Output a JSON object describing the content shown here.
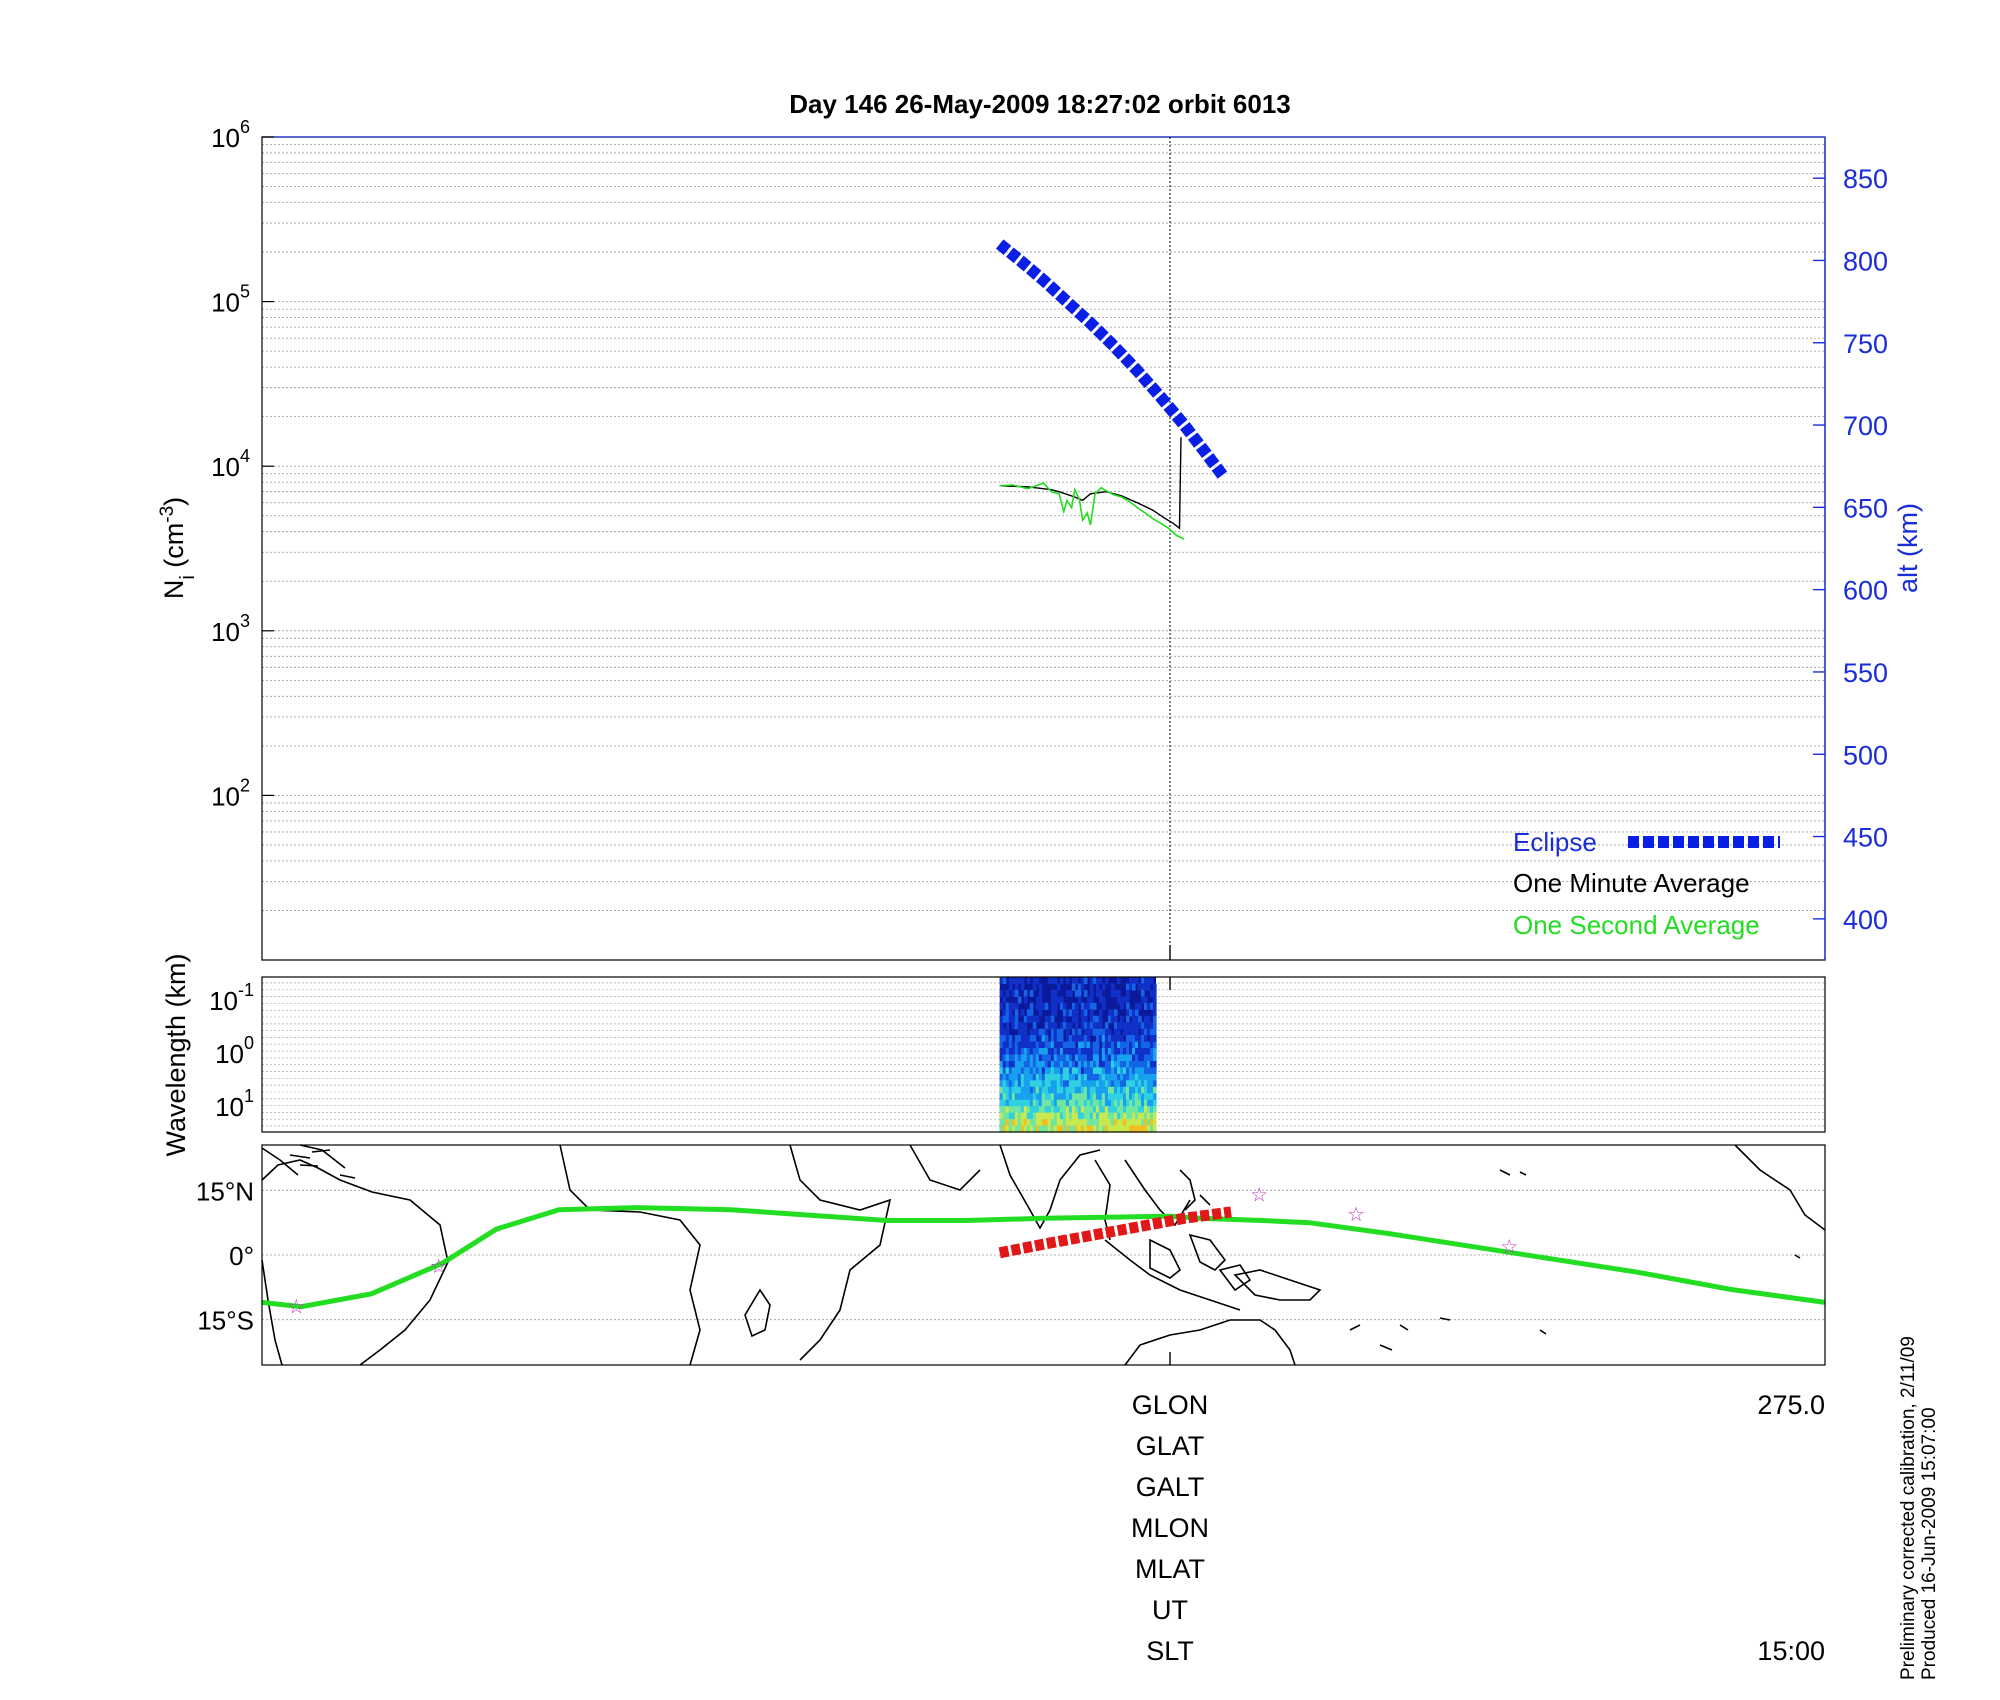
{
  "figure": {
    "title": "Day 146  26-May-2009 18:27:02   orbit 6013",
    "footnote_line1": "Preliminary corrected calibration, 2/11/09",
    "footnote_line2": "Produced 16-Jun-2009 15:07:00"
  },
  "chart_data": [
    {
      "id": "density",
      "type": "line",
      "ylabel_left": "N_i (cm^-3)",
      "ylabel_right": "alt (km)",
      "yscale_left": "log",
      "ylim_left": [
        10,
        1000000
      ],
      "yticks_left": [
        {
          "base": "10",
          "exp": "2"
        },
        {
          "base": "10",
          "exp": "3"
        },
        {
          "base": "10",
          "exp": "4"
        },
        {
          "base": "10",
          "exp": "5"
        },
        {
          "base": "10",
          "exp": "6"
        }
      ],
      "ylim_right": [
        375,
        875
      ],
      "yticks_right": [
        "400",
        "450",
        "500",
        "550",
        "600",
        "650",
        "700",
        "750",
        "800",
        "850"
      ],
      "grid": true,
      "legend_position": "bottom-right",
      "series": [
        {
          "name": "Eclipse",
          "axis": "right",
          "color": "#0a1fe6",
          "style": "dotted-thick",
          "points": [
            [
              0.472,
              810
            ],
            [
              0.485,
              800
            ],
            [
              0.5,
              788
            ],
            [
              0.515,
              775
            ],
            [
              0.53,
              762
            ],
            [
              0.545,
              748
            ],
            [
              0.56,
              733
            ],
            [
              0.575,
              717
            ],
            [
              0.59,
              700
            ],
            [
              0.603,
              684
            ],
            [
              0.615,
              669
            ],
            [
              0.6,
              690
            ],
            [
              0.602,
              688
            ],
            [
              0.605,
              683
            ],
            [
              0.61,
              676
            ],
            [
              0.613,
              671
            ],
            [
              0.618,
              664
            ],
            [
              0.62,
              660
            ],
            [
              0.622,
              657
            ],
            [
              0.625,
              652
            ],
            [
              0.628,
              648
            ]
          ]
        },
        {
          "name": "One Minute Average",
          "axis": "left",
          "color": "#000000",
          "style": "solid-thin",
          "points": [
            [
              0.472,
              7600
            ],
            [
              0.49,
              7500
            ],
            [
              0.505,
              7200
            ],
            [
              0.51,
              7000
            ],
            [
              0.52,
              6500
            ],
            [
              0.525,
              6200
            ],
            [
              0.53,
              6800
            ],
            [
              0.54,
              7000
            ],
            [
              0.55,
              6600
            ],
            [
              0.56,
              6000
            ],
            [
              0.57,
              5400
            ],
            [
              0.578,
              4800
            ],
            [
              0.583,
              4500
            ],
            [
              0.587,
              4200
            ],
            [
              0.588,
              15000
            ]
          ]
        },
        {
          "name": "One Second Average",
          "axis": "left",
          "color": "#22dd22",
          "style": "solid-noisy",
          "points": [
            [
              0.472,
              7600
            ],
            [
              0.48,
              7700
            ],
            [
              0.49,
              7300
            ],
            [
              0.5,
              7900
            ],
            [
              0.505,
              7000
            ],
            [
              0.51,
              6800
            ],
            [
              0.513,
              5300
            ],
            [
              0.515,
              6200
            ],
            [
              0.518,
              5600
            ],
            [
              0.52,
              7200
            ],
            [
              0.523,
              6300
            ],
            [
              0.525,
              4700
            ],
            [
              0.528,
              5200
            ],
            [
              0.53,
              4400
            ],
            [
              0.533,
              6800
            ],
            [
              0.537,
              7400
            ],
            [
              0.54,
              7100
            ],
            [
              0.545,
              6700
            ],
            [
              0.55,
              6500
            ],
            [
              0.555,
              6100
            ],
            [
              0.56,
              5600
            ],
            [
              0.565,
              5200
            ],
            [
              0.57,
              4800
            ],
            [
              0.575,
              4500
            ],
            [
              0.58,
              4200
            ],
            [
              0.585,
              3800
            ],
            [
              0.59,
              3600
            ]
          ]
        }
      ]
    },
    {
      "id": "spectrogram",
      "type": "heatmap",
      "ylabel": "Wavelength (km)",
      "yticks": [
        {
          "base": "10",
          "exp": "-1"
        },
        {
          "base": "10",
          "exp": "0"
        },
        {
          "base": "10",
          "exp": "1"
        }
      ],
      "x_range": [
        0.472,
        0.572
      ],
      "colors": [
        "#0a1a9a",
        "#1030c8",
        "#1464e6",
        "#18a0f0",
        "#30d0e0",
        "#70e6a0",
        "#c8e850",
        "#f0c020"
      ]
    },
    {
      "id": "groundtrack",
      "type": "line",
      "yticks": [
        "15°N",
        "0°",
        "15°S"
      ],
      "ylim": [
        -25,
        25
      ],
      "track_color": "#22dd22",
      "eclipse_color": "#e01818",
      "star_color": "#c040c0",
      "track": [
        [
          0.0,
          -11
        ],
        [
          0.025,
          -12
        ],
        [
          0.07,
          -9
        ],
        [
          0.115,
          -2
        ],
        [
          0.15,
          6
        ],
        [
          0.19,
          10.5
        ],
        [
          0.24,
          11
        ],
        [
          0.3,
          10.5
        ],
        [
          0.36,
          9
        ],
        [
          0.4,
          8
        ],
        [
          0.45,
          8
        ],
        [
          0.5,
          8.5
        ],
        [
          0.58,
          9
        ],
        [
          0.6,
          8.5
        ],
        [
          0.64,
          8
        ],
        [
          0.67,
          7.5
        ],
        [
          0.72,
          5
        ],
        [
          0.8,
          0.5
        ],
        [
          0.88,
          -4
        ],
        [
          0.94,
          -8
        ],
        [
          1.0,
          -11
        ]
      ],
      "eclipse_segment": [
        [
          0.472,
          0.5
        ],
        [
          0.5,
          2.5
        ],
        [
          0.53,
          4.5
        ],
        [
          0.56,
          6.5
        ],
        [
          0.59,
          8.5
        ],
        [
          0.6,
          9
        ],
        [
          0.62,
          10
        ]
      ],
      "stars": [
        [
          0.113,
          -2.5
        ],
        [
          0.638,
          14
        ],
        [
          0.7,
          9.5
        ],
        [
          0.798,
          2
        ],
        [
          0.022,
          -12
        ]
      ]
    }
  ],
  "xaxis": {
    "left_labels": [
      "GLON",
      "GLAT",
      "GALT",
      "MLON",
      "MLAT",
      "UT",
      "SLT"
    ],
    "right_top": "275.0",
    "right_bottom": "15:00"
  },
  "legend": {
    "eclipse": "Eclipse",
    "minute": "One Minute Average",
    "second": "One Second Average"
  }
}
